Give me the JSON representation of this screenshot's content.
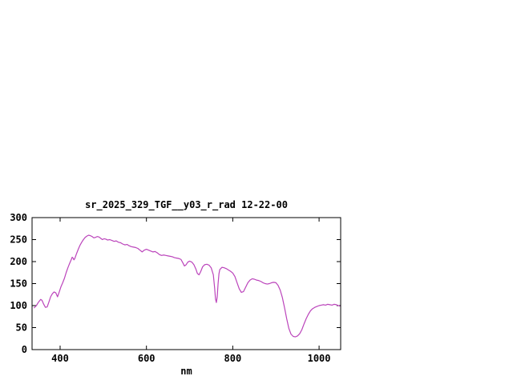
{
  "chart_data": {
    "type": "line",
    "title": "sr_2025_329_TGF__y03_r_rad 12-22-00",
    "xlabel": "nm",
    "ylabel": "",
    "x_range": [
      335,
      1050
    ],
    "y_range": [
      0,
      300
    ],
    "x_ticks": [
      400,
      600,
      800,
      1000
    ],
    "y_ticks": [
      0,
      50,
      100,
      150,
      200,
      250,
      300
    ],
    "grid": false,
    "legend": "none",
    "line_color": "#bb44bb",
    "frame_color": "#000000",
    "series_name": "sr_2025_329_TGF__y03_r_rad",
    "points": [
      [
        340,
        95
      ],
      [
        345,
        100
      ],
      [
        350,
        108
      ],
      [
        355,
        114
      ],
      [
        358,
        112
      ],
      [
        362,
        103
      ],
      [
        366,
        96
      ],
      [
        370,
        97
      ],
      [
        374,
        108
      ],
      [
        378,
        120
      ],
      [
        382,
        127
      ],
      [
        386,
        131
      ],
      [
        390,
        129
      ],
      [
        394,
        120
      ],
      [
        398,
        131
      ],
      [
        402,
        143
      ],
      [
        406,
        152
      ],
      [
        410,
        162
      ],
      [
        414,
        175
      ],
      [
        418,
        186
      ],
      [
        422,
        196
      ],
      [
        426,
        205
      ],
      [
        428,
        210
      ],
      [
        430,
        208
      ],
      [
        432,
        204
      ],
      [
        434,
        207
      ],
      [
        438,
        218
      ],
      [
        442,
        228
      ],
      [
        446,
        237
      ],
      [
        450,
        244
      ],
      [
        454,
        250
      ],
      [
        458,
        255
      ],
      [
        462,
        258
      ],
      [
        466,
        260
      ],
      [
        470,
        259
      ],
      [
        474,
        257
      ],
      [
        478,
        254
      ],
      [
        482,
        255
      ],
      [
        486,
        257
      ],
      [
        490,
        256
      ],
      [
        494,
        253
      ],
      [
        498,
        250
      ],
      [
        502,
        252
      ],
      [
        506,
        251
      ],
      [
        510,
        249
      ],
      [
        515,
        250
      ],
      [
        520,
        248
      ],
      [
        525,
        246
      ],
      [
        530,
        247
      ],
      [
        535,
        244
      ],
      [
        540,
        243
      ],
      [
        545,
        240
      ],
      [
        550,
        238
      ],
      [
        555,
        239
      ],
      [
        560,
        236
      ],
      [
        565,
        234
      ],
      [
        570,
        233
      ],
      [
        575,
        232
      ],
      [
        580,
        230
      ],
      [
        585,
        226
      ],
      [
        590,
        222
      ],
      [
        595,
        226
      ],
      [
        600,
        228
      ],
      [
        605,
        226
      ],
      [
        610,
        224
      ],
      [
        615,
        222
      ],
      [
        620,
        223
      ],
      [
        625,
        220
      ],
      [
        630,
        216
      ],
      [
        635,
        214
      ],
      [
        640,
        215
      ],
      [
        645,
        214
      ],
      [
        650,
        213
      ],
      [
        655,
        212
      ],
      [
        660,
        211
      ],
      [
        665,
        209
      ],
      [
        670,
        208
      ],
      [
        675,
        207
      ],
      [
        680,
        205
      ],
      [
        685,
        196
      ],
      [
        688,
        190
      ],
      [
        692,
        193
      ],
      [
        696,
        199
      ],
      [
        700,
        201
      ],
      [
        705,
        199
      ],
      [
        710,
        193
      ],
      [
        715,
        182
      ],
      [
        718,
        173
      ],
      [
        722,
        170
      ],
      [
        726,
        178
      ],
      [
        730,
        188
      ],
      [
        735,
        193
      ],
      [
        740,
        194
      ],
      [
        745,
        192
      ],
      [
        750,
        186
      ],
      [
        755,
        170
      ],
      [
        758,
        140
      ],
      [
        760,
        115
      ],
      [
        762,
        107
      ],
      [
        764,
        120
      ],
      [
        766,
        150
      ],
      [
        768,
        172
      ],
      [
        770,
        182
      ],
      [
        775,
        187
      ],
      [
        780,
        186
      ],
      [
        785,
        184
      ],
      [
        790,
        181
      ],
      [
        795,
        178
      ],
      [
        800,
        174
      ],
      [
        805,
        166
      ],
      [
        810,
        152
      ],
      [
        815,
        138
      ],
      [
        820,
        130
      ],
      [
        825,
        132
      ],
      [
        830,
        142
      ],
      [
        835,
        152
      ],
      [
        840,
        158
      ],
      [
        845,
        161
      ],
      [
        850,
        160
      ],
      [
        855,
        158
      ],
      [
        860,
        157
      ],
      [
        865,
        155
      ],
      [
        870,
        152
      ],
      [
        875,
        150
      ],
      [
        880,
        149
      ],
      [
        885,
        150
      ],
      [
        890,
        152
      ],
      [
        895,
        153
      ],
      [
        900,
        152
      ],
      [
        905,
        146
      ],
      [
        910,
        135
      ],
      [
        915,
        118
      ],
      [
        920,
        95
      ],
      [
        925,
        70
      ],
      [
        930,
        48
      ],
      [
        935,
        35
      ],
      [
        940,
        30
      ],
      [
        945,
        29
      ],
      [
        950,
        31
      ],
      [
        955,
        36
      ],
      [
        960,
        45
      ],
      [
        965,
        58
      ],
      [
        970,
        70
      ],
      [
        975,
        80
      ],
      [
        980,
        88
      ],
      [
        985,
        93
      ],
      [
        990,
        96
      ],
      [
        995,
        98
      ],
      [
        1000,
        100
      ],
      [
        1005,
        101
      ],
      [
        1010,
        102
      ],
      [
        1015,
        101
      ],
      [
        1020,
        103
      ],
      [
        1025,
        102
      ],
      [
        1030,
        101
      ],
      [
        1035,
        103
      ],
      [
        1040,
        102
      ],
      [
        1045,
        100
      ],
      [
        1048,
        99
      ]
    ]
  }
}
